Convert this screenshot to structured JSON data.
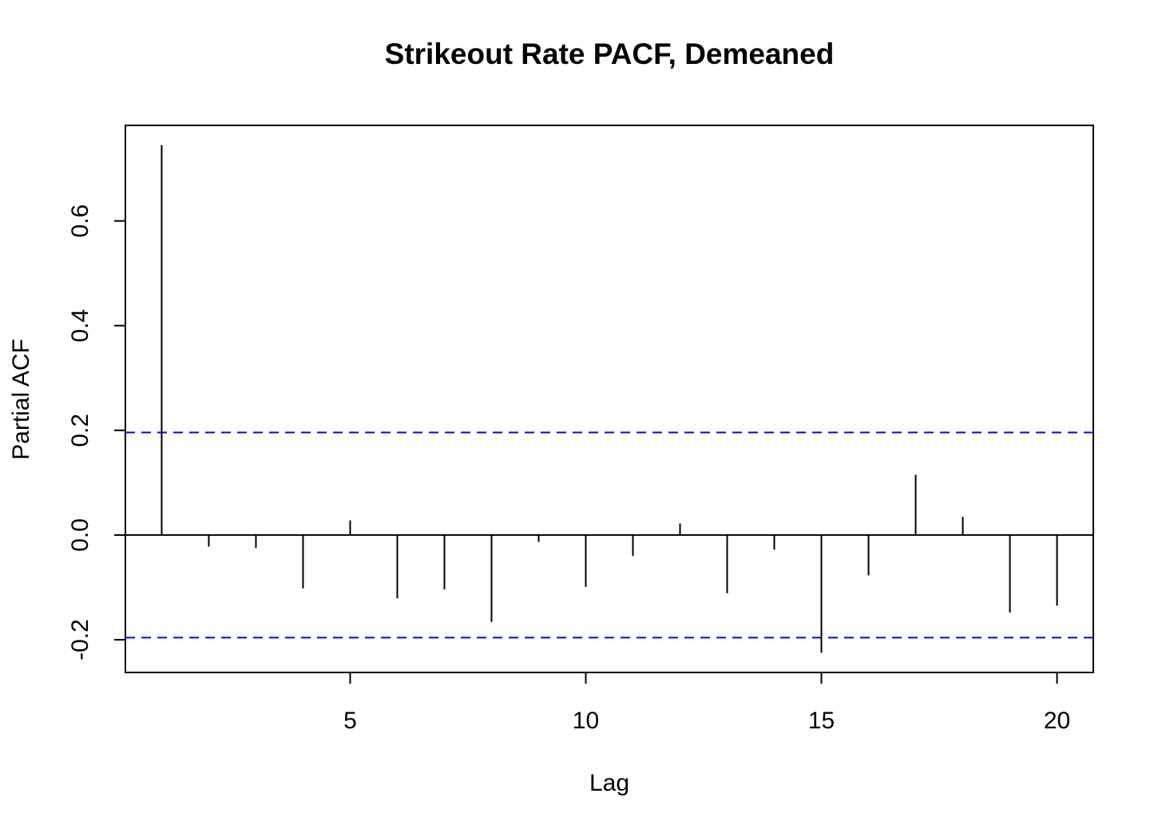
{
  "chart_data": {
    "type": "bar",
    "title": "Strikeout Rate PACF, Demeaned",
    "xlabel": "Lag",
    "ylabel": "Partial ACF",
    "x": [
      1,
      2,
      3,
      4,
      5,
      6,
      7,
      8,
      9,
      10,
      11,
      12,
      13,
      14,
      15,
      16,
      17,
      18,
      19,
      20
    ],
    "values": [
      0.745,
      -0.022,
      -0.025,
      -0.102,
      0.028,
      -0.121,
      -0.104,
      -0.166,
      -0.013,
      -0.099,
      -0.04,
      0.022,
      -0.111,
      -0.028,
      -0.225,
      -0.077,
      0.115,
      0.035,
      -0.148,
      -0.135
    ],
    "xlim": [
      0.23,
      20.77
    ],
    "ylim": [
      -0.2625,
      0.7825
    ],
    "xticks": [
      5,
      10,
      15,
      20
    ],
    "xtick_labels": [
      "5",
      "10",
      "15",
      "20"
    ],
    "yticks": [
      -0.2,
      0.0,
      0.2,
      0.4,
      0.6
    ],
    "ytick_labels": [
      "-0.2",
      "0.0",
      "0.2",
      "0.4",
      "0.6"
    ],
    "confidence_bounds": [
      0.196,
      -0.196
    ],
    "confidence_color": "#0000ff",
    "zero_line": 0,
    "grid": false,
    "bar_color": "#000000"
  }
}
